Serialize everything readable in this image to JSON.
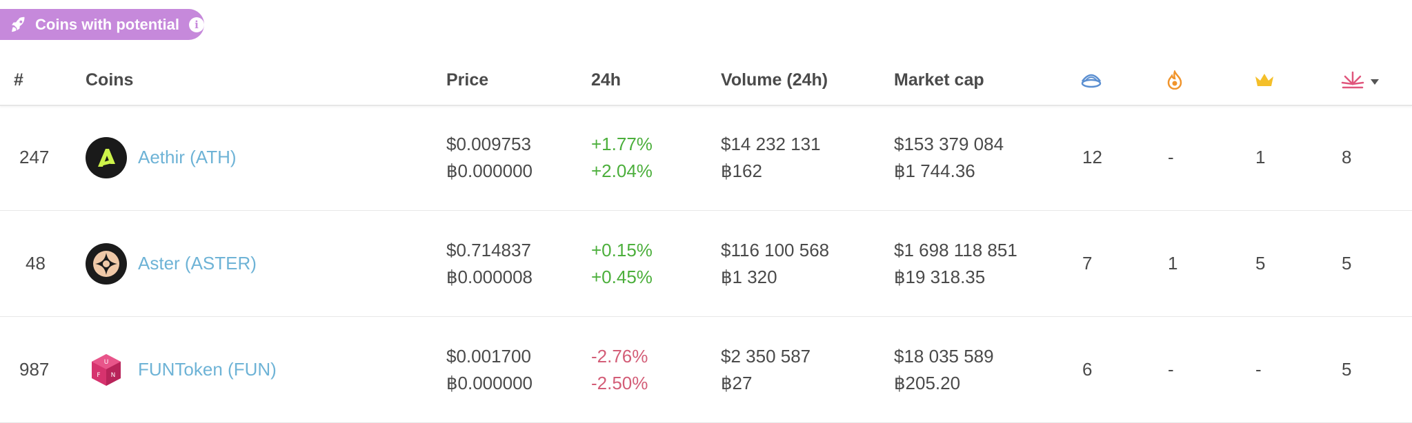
{
  "badge": {
    "label": "Coins with potential",
    "icon": "rocket-icon",
    "info_icon": "info-icon",
    "info_glyph": "i"
  },
  "columns": {
    "rank": "#",
    "coins": "Coins",
    "price": "Price",
    "change": "24h",
    "volume": "Volume (24h)",
    "market_cap": "Market cap",
    "icon1": "rainbow-bowl-icon",
    "icon2": "fire-icon",
    "icon3": "crown-icon",
    "icon4": "burst-icon",
    "sort_icon": "caret-down-icon"
  },
  "rows": [
    {
      "rank": "247",
      "name": "Aethir (ATH)",
      "logo": "aethir-logo",
      "price_usd": "$0.009753",
      "price_btc": "฿0.000000",
      "change_usd": "+1.77%",
      "change_btc": "+2.04%",
      "change_dir": "up",
      "volume_usd": "$14 232 131",
      "volume_btc": "฿162",
      "mcap_usd": "$153 379 084",
      "mcap_btc": "฿1 744.36",
      "c1": "12",
      "c2": "-",
      "c3": "1",
      "c4": "8"
    },
    {
      "rank": "48",
      "name": "Aster (ASTER)",
      "logo": "aster-logo",
      "price_usd": "$0.714837",
      "price_btc": "฿0.000008",
      "change_usd": "+0.15%",
      "change_btc": "+0.45%",
      "change_dir": "up",
      "volume_usd": "$116 100 568",
      "volume_btc": "฿1 320",
      "mcap_usd": "$1 698 118 851",
      "mcap_btc": "฿19 318.35",
      "c1": "7",
      "c2": "1",
      "c3": "5",
      "c4": "5"
    },
    {
      "rank": "987",
      "name": "FUNToken (FUN)",
      "logo": "funtoken-logo",
      "price_usd": "$0.001700",
      "price_btc": "฿0.000000",
      "change_usd": "-2.76%",
      "change_btc": "-2.50%",
      "change_dir": "down",
      "volume_usd": "$2 350 587",
      "volume_btc": "฿27",
      "mcap_usd": "$18 035 589",
      "mcap_btc": "฿205.20",
      "c1": "6",
      "c2": "-",
      "c3": "-",
      "c4": "5"
    }
  ],
  "colors": {
    "badge": "#c689db",
    "link": "#6eb3d6",
    "positive": "#4caf3c",
    "negative": "#d35d77"
  }
}
